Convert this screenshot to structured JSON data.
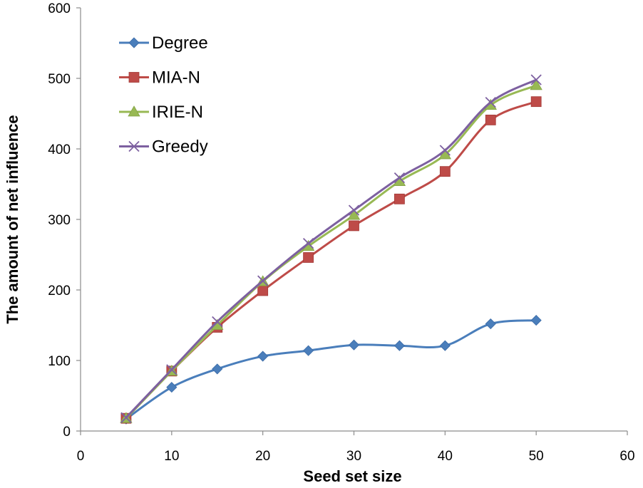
{
  "chart_data": {
    "type": "line",
    "title": "",
    "xlabel": "Seed set size",
    "ylabel": "The amount of net influence",
    "xlim": [
      0,
      60
    ],
    "ylim": [
      0,
      600
    ],
    "xticks": [
      0,
      10,
      20,
      30,
      40,
      50,
      60
    ],
    "yticks": [
      0,
      100,
      200,
      300,
      400,
      500,
      600
    ],
    "grid": false,
    "legend_position": "top-left",
    "x": [
      5,
      10,
      15,
      20,
      25,
      30,
      35,
      40,
      45,
      50
    ],
    "series": [
      {
        "name": "Degree",
        "color": "#4a7ebb",
        "marker": "diamond",
        "values": [
          17,
          62,
          88,
          106,
          114,
          122,
          121,
          121,
          152,
          157
        ]
      },
      {
        "name": "MIA-N",
        "color": "#be4b48",
        "marker": "square",
        "values": [
          18,
          85,
          147,
          199,
          246,
          291,
          329,
          368,
          441,
          467
        ]
      },
      {
        "name": "IRIE-N",
        "color": "#98b954",
        "marker": "triangle",
        "values": [
          18,
          85,
          150,
          212,
          262,
          306,
          354,
          392,
          462,
          490
        ]
      },
      {
        "name": "Greedy",
        "color": "#7d60a0",
        "marker": "x",
        "values": [
          19,
          87,
          155,
          213,
          266,
          313,
          359,
          398,
          466,
          498
        ]
      }
    ]
  }
}
